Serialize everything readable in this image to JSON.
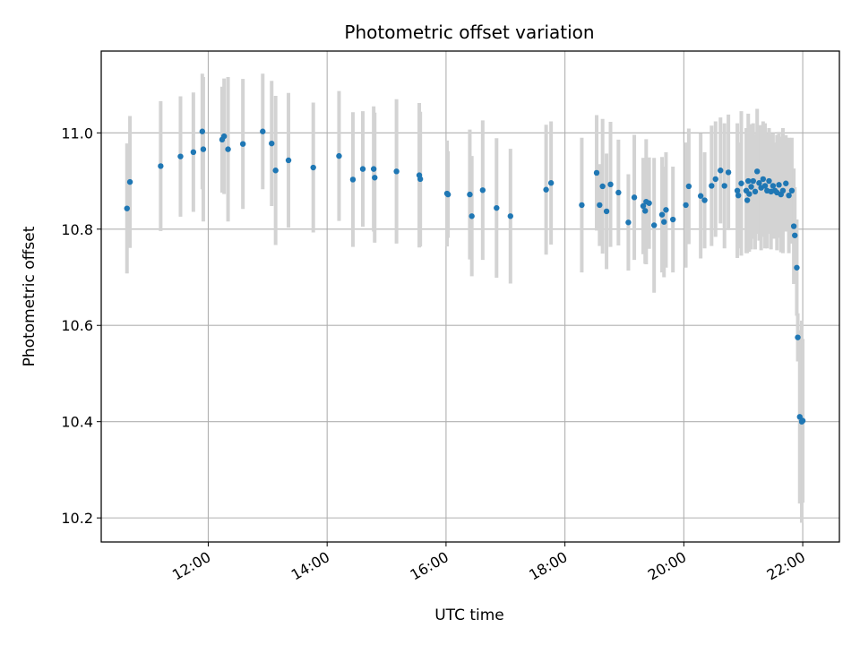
{
  "chart_data": {
    "type": "scatter",
    "title": "Photometric offset variation",
    "xlabel": "UTC time",
    "ylabel": "Photometric offset",
    "x_ticks": [
      "12:00",
      "14:00",
      "16:00",
      "18:00",
      "20:00",
      "22:00"
    ],
    "y_ticks": [
      "10.2",
      "10.4",
      "10.6",
      "10.8",
      "11.0"
    ],
    "xlim": [
      "10:12",
      "22:37"
    ],
    "ylim": [
      10.15,
      11.17
    ],
    "grid": true,
    "colors": {
      "point": "#1f77b4",
      "errorbar": "#d3d3d3",
      "grid": "#b0b0b0"
    },
    "series": [
      {
        "x": [
          "10:38",
          "10:41",
          "11:12",
          "11:32",
          "11:45",
          "11:54",
          "11:55",
          "12:14",
          "12:16",
          "12:20",
          "12:35",
          "12:55",
          "13:04",
          "13:08",
          "13:21",
          "13:46",
          "14:12",
          "14:26",
          "14:36",
          "14:47",
          "14:48",
          "15:10",
          "15:33",
          "15:34",
          "16:01",
          "16:02",
          "16:24",
          "16:26",
          "16:37",
          "16:51",
          "17:05",
          "17:41",
          "17:46",
          "18:17",
          "18:32",
          "18:35",
          "18:38",
          "18:42",
          "18:46",
          "18:54",
          "19:04",
          "19:10",
          "19:19",
          "19:21",
          "19:22",
          "19:25",
          "19:30",
          "19:38",
          "19:40",
          "19:42",
          "19:49",
          "20:02",
          "20:05",
          "20:17",
          "20:21",
          "20:28",
          "20:32",
          "20:37",
          "20:41",
          "20:45",
          "20:54",
          "20:55",
          "20:58",
          "21:03",
          "21:04",
          "21:05",
          "21:06",
          "21:08",
          "21:10",
          "21:12",
          "21:14",
          "21:16",
          "21:18",
          "21:20",
          "21:22",
          "21:24",
          "21:26",
          "21:28",
          "21:30",
          "21:32",
          "21:34",
          "21:36",
          "21:38",
          "21:40",
          "21:43",
          "21:46",
          "21:49",
          "21:51",
          "21:52",
          "21:54",
          "21:55",
          "21:57",
          "21:59",
          "22:00"
        ],
        "y": [
          10.843,
          10.898,
          10.931,
          10.951,
          10.96,
          11.003,
          10.966,
          10.986,
          10.993,
          10.966,
          10.977,
          11.003,
          10.978,
          10.922,
          10.943,
          10.928,
          10.952,
          10.903,
          10.925,
          10.925,
          10.907,
          10.92,
          10.912,
          10.904,
          10.874,
          10.872,
          10.872,
          10.827,
          10.881,
          10.844,
          10.827,
          10.882,
          10.896,
          10.85,
          10.917,
          10.85,
          10.889,
          10.837,
          10.893,
          10.876,
          10.814,
          10.866,
          10.848,
          10.838,
          10.857,
          10.854,
          10.808,
          10.83,
          10.815,
          10.84,
          10.82,
          10.85,
          10.889,
          10.869,
          10.86,
          10.89,
          10.904,
          10.922,
          10.89,
          10.918,
          10.88,
          10.87,
          10.895,
          10.88,
          10.86,
          10.9,
          10.873,
          10.888,
          10.9,
          10.878,
          10.92,
          10.896,
          10.886,
          10.904,
          10.89,
          10.88,
          10.9,
          10.878,
          10.89,
          10.88,
          10.876,
          10.892,
          10.872,
          10.88,
          10.895,
          10.87,
          10.88,
          10.806,
          10.787,
          10.72,
          10.575,
          10.41,
          10.4,
          10.402
        ],
        "err": [
          0.135,
          0.137,
          0.135,
          0.125,
          0.124,
          0.12,
          0.15,
          0.11,
          0.12,
          0.15,
          0.135,
          0.12,
          0.13,
          0.155,
          0.14,
          0.135,
          0.135,
          0.14,
          0.12,
          0.13,
          0.135,
          0.15,
          0.15,
          0.14,
          0.11,
          0.09,
          0.135,
          0.125,
          0.145,
          0.145,
          0.14,
          0.135,
          0.128,
          0.14,
          0.12,
          0.085,
          0.14,
          0.12,
          0.13,
          0.11,
          0.1,
          0.13,
          0.1,
          0.11,
          0.13,
          0.095,
          0.14,
          0.12,
          0.115,
          0.12,
          0.11,
          0.13,
          0.12,
          0.13,
          0.1,
          0.125,
          0.12,
          0.11,
          0.13,
          0.12,
          0.14,
          0.11,
          0.15,
          0.13,
          0.11,
          0.14,
          0.12,
          0.13,
          0.12,
          0.12,
          0.13,
          0.12,
          0.13,
          0.12,
          0.13,
          0.12,
          0.11,
          0.12,
          0.11,
          0.1,
          0.12,
          0.11,
          0.12,
          0.13,
          0.1,
          0.12,
          0.11,
          0.12,
          0.1,
          0.1,
          0.05,
          0.18,
          0.21,
          0.17
        ]
      }
    ]
  }
}
